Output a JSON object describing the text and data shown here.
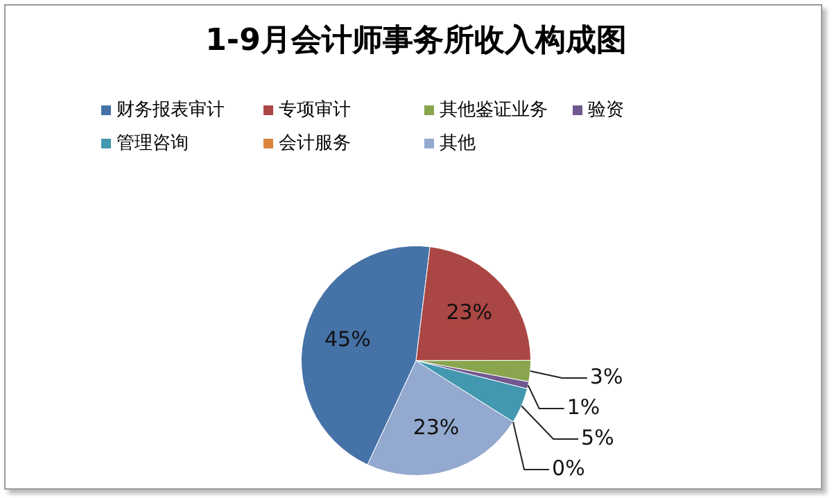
{
  "chart_data": {
    "type": "pie",
    "title": "1-9月会计师事务所收入构成图",
    "categories": [
      "财务报表审计",
      "专项审计",
      "其他鉴证业务",
      "验资",
      "管理咨询",
      "会计服务",
      "其他"
    ],
    "values": [
      45,
      23,
      3,
      1,
      5,
      0,
      23
    ],
    "colors": [
      "#4572a7",
      "#aa4643",
      "#89a54e",
      "#71588f",
      "#4198af",
      "#db843d",
      "#93a9cf"
    ],
    "value_labels": [
      "45%",
      "23%",
      "3%",
      "1%",
      "5%",
      "0%",
      "23%"
    ],
    "legend": "top"
  }
}
